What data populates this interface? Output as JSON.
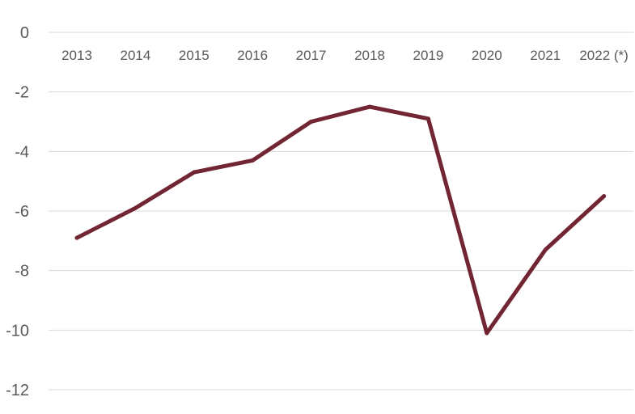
{
  "chart_data": {
    "type": "line",
    "categories": [
      "2013",
      "2014",
      "2015",
      "2016",
      "2017",
      "2018",
      "2019",
      "2020",
      "2021",
      "2022 (*)"
    ],
    "series": [
      {
        "values": [
          -6.9,
          -5.9,
          -4.7,
          -4.3,
          -3.0,
          -2.5,
          -2.9,
          -10.1,
          -7.3,
          -5.5
        ]
      }
    ],
    "ylim": [
      -12,
      0
    ],
    "yticks": [
      0,
      -2,
      -4,
      -6,
      -8,
      -10,
      -12
    ],
    "grid": true,
    "legend": "none",
    "title": "",
    "xlabel": "",
    "ylabel": "",
    "colors": {
      "line": "#722532",
      "grid": "#d9d9d9",
      "text": "#595959"
    }
  }
}
